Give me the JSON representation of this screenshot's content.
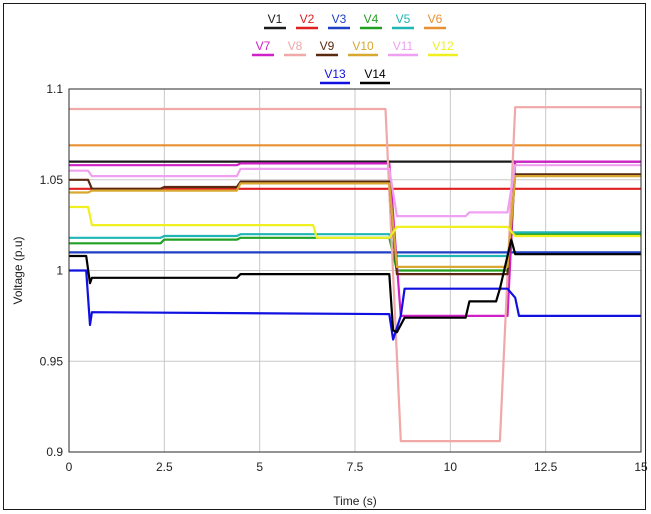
{
  "chart_data": {
    "type": "line",
    "title": "",
    "xlabel": "Time (s)",
    "ylabel": "Voltage (p.u)",
    "xlim": [
      0,
      15
    ],
    "ylim": [
      0.9,
      1.1
    ],
    "grid": true,
    "legend_position": "top-center",
    "x_ticks": [
      "0",
      "2.5",
      "5",
      "7.5",
      "10",
      "12.5",
      "15"
    ],
    "y_ticks": [
      "0.9",
      "0.95",
      "1",
      "1.05",
      "1.1"
    ],
    "series": [
      {
        "name": "V1",
        "color": "#1a1a1a",
        "x": [
          0,
          8.4,
          8.5,
          11.5,
          11.6,
          15
        ],
        "y": [
          1.06,
          1.06,
          1.06,
          1.06,
          1.06,
          1.06
        ]
      },
      {
        "name": "V2",
        "color": "#e02020",
        "x": [
          0,
          15
        ],
        "y": [
          1.045,
          1.045
        ]
      },
      {
        "name": "V3",
        "color": "#1f3fc4",
        "x": [
          0,
          15
        ],
        "y": [
          1.01,
          1.01
        ]
      },
      {
        "name": "V4",
        "color": "#22a022",
        "x": [
          0,
          2.4,
          2.5,
          4.4,
          4.5,
          8.4,
          8.6,
          11.5,
          11.6,
          15
        ],
        "y": [
          1.015,
          1.015,
          1.017,
          1.017,
          1.018,
          1.018,
          1.0,
          1.0,
          1.02,
          1.02
        ]
      },
      {
        "name": "V5",
        "color": "#1fb5b5",
        "x": [
          0,
          2.4,
          2.5,
          4.4,
          4.5,
          8.4,
          8.6,
          11.5,
          11.6,
          15
        ],
        "y": [
          1.018,
          1.018,
          1.019,
          1.019,
          1.02,
          1.02,
          1.008,
          1.008,
          1.021,
          1.021
        ]
      },
      {
        "name": "V6",
        "color": "#e89030",
        "x": [
          0,
          15
        ],
        "y": [
          1.069,
          1.069
        ]
      },
      {
        "name": "V7",
        "color": "#d020c8",
        "x": [
          0,
          4.4,
          4.5,
          8.4,
          8.7,
          10.4,
          10.5,
          11.5,
          11.7,
          15
        ],
        "y": [
          1.058,
          1.058,
          1.059,
          1.059,
          0.975,
          0.975,
          0.975,
          0.975,
          1.06,
          1.06
        ]
      },
      {
        "name": "V8",
        "color": "#f0a8a8",
        "x": [
          0,
          8.3,
          8.7,
          11.3,
          11.7,
          15
        ],
        "y": [
          1.089,
          1.089,
          0.906,
          0.906,
          1.09,
          1.09
        ]
      },
      {
        "name": "V9",
        "color": "#5a2a10",
        "x": [
          0,
          0.5,
          0.6,
          2.4,
          2.5,
          4.4,
          4.5,
          8.4,
          8.6,
          11.5,
          11.7,
          15
        ],
        "y": [
          1.05,
          1.05,
          1.045,
          1.045,
          1.046,
          1.046,
          1.049,
          1.049,
          0.998,
          0.998,
          1.053,
          1.053
        ]
      },
      {
        "name": "V10",
        "color": "#d8a830",
        "x": [
          0,
          0.5,
          0.6,
          4.4,
          4.5,
          8.4,
          8.6,
          11.5,
          11.7,
          15
        ],
        "y": [
          1.043,
          1.043,
          1.044,
          1.044,
          1.048,
          1.048,
          1.002,
          1.002,
          1.052,
          1.052
        ]
      },
      {
        "name": "V11",
        "color": "#f0a0f0",
        "x": [
          0,
          0.5,
          0.6,
          4.4,
          4.5,
          8.4,
          8.6,
          10.4,
          10.5,
          11.5,
          11.7,
          15
        ],
        "y": [
          1.055,
          1.055,
          1.052,
          1.052,
          1.056,
          1.056,
          1.03,
          1.03,
          1.032,
          1.032,
          1.058,
          1.058
        ]
      },
      {
        "name": "V12",
        "color": "#f0f020",
        "x": [
          0,
          0.5,
          0.6,
          6.4,
          6.5,
          8.4,
          8.6,
          11.5,
          11.7,
          15
        ],
        "y": [
          1.035,
          1.035,
          1.025,
          1.025,
          1.018,
          1.018,
          1.024,
          1.024,
          1.019,
          1.019
        ]
      },
      {
        "name": "V13",
        "color": "#1010e0",
        "x": [
          0,
          0.45,
          0.55,
          0.6,
          8.4,
          8.5,
          8.7,
          8.8,
          11.5,
          11.7,
          11.8,
          15
        ],
        "y": [
          1.0,
          1.0,
          0.97,
          0.977,
          0.976,
          0.962,
          0.975,
          0.99,
          0.99,
          0.985,
          0.975,
          0.975
        ]
      },
      {
        "name": "V14",
        "color": "#000000",
        "x": [
          0,
          0.45,
          0.55,
          0.6,
          4.4,
          4.5,
          8.4,
          8.5,
          8.6,
          8.8,
          10.4,
          10.5,
          11.2,
          11.3,
          11.6,
          11.7,
          15
        ],
        "y": [
          1.008,
          1.008,
          0.993,
          0.996,
          0.996,
          0.998,
          0.998,
          0.967,
          0.966,
          0.974,
          0.974,
          0.983,
          0.983,
          0.99,
          1.017,
          1.009,
          1.009
        ]
      }
    ]
  }
}
